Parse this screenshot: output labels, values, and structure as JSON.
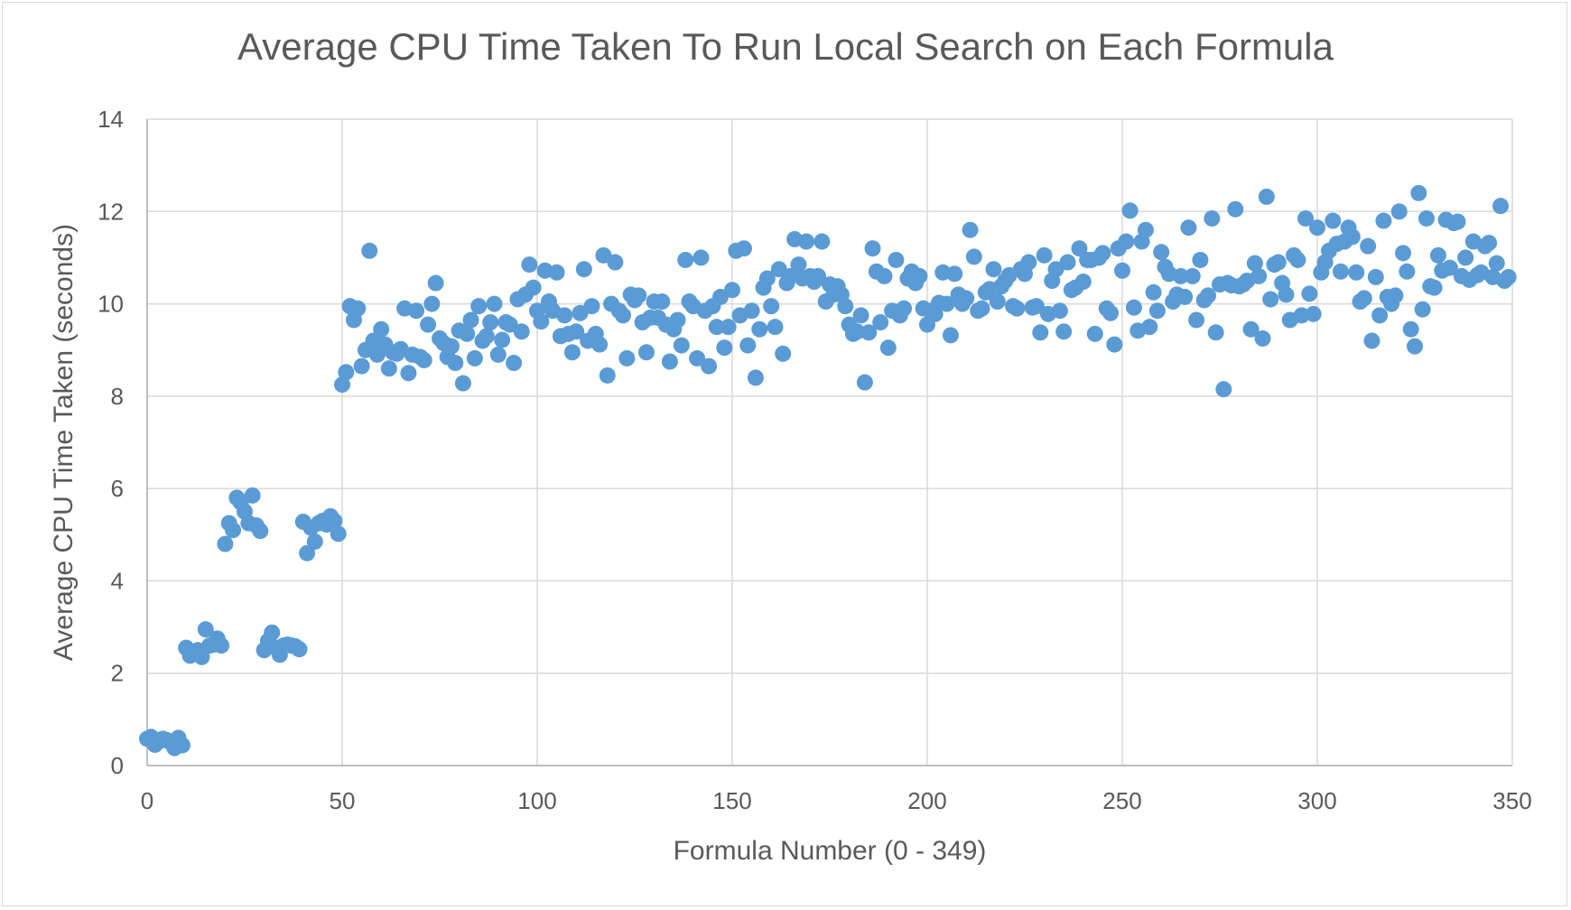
{
  "chart_data": {
    "type": "scatter",
    "title": "Average CPU Time Taken To Run Local Search on Each Formula",
    "xlabel": "Formula Number (0 - 349)",
    "ylabel": "Average CPU Time Taken (seconds)",
    "xlim": [
      0,
      350
    ],
    "ylim": [
      0,
      14
    ],
    "xticks": [
      0,
      50,
      100,
      150,
      200,
      250,
      300,
      350
    ],
    "yticks": [
      0,
      2,
      4,
      6,
      8,
      10,
      12,
      14
    ],
    "grid": true,
    "legend": "none",
    "marker_color": "#5b9bd5",
    "points": [
      [
        0,
        0.58
      ],
      [
        1,
        0.62
      ],
      [
        2,
        0.45
      ],
      [
        3,
        0.52
      ],
      [
        4,
        0.58
      ],
      [
        5,
        0.55
      ],
      [
        6,
        0.5
      ],
      [
        7,
        0.38
      ],
      [
        8,
        0.6
      ],
      [
        9,
        0.44
      ],
      [
        10,
        2.55
      ],
      [
        11,
        2.38
      ],
      [
        12,
        2.45
      ],
      [
        13,
        2.5
      ],
      [
        14,
        2.35
      ],
      [
        15,
        2.95
      ],
      [
        16,
        2.6
      ],
      [
        17,
        2.62
      ],
      [
        18,
        2.75
      ],
      [
        19,
        2.6
      ],
      [
        20,
        4.8
      ],
      [
        21,
        5.25
      ],
      [
        22,
        5.1
      ],
      [
        23,
        5.8
      ],
      [
        24,
        5.7
      ],
      [
        25,
        5.5
      ],
      [
        26,
        5.25
      ],
      [
        27,
        5.85
      ],
      [
        28,
        5.2
      ],
      [
        29,
        5.08
      ],
      [
        30,
        2.5
      ],
      [
        31,
        2.7
      ],
      [
        32,
        2.88
      ],
      [
        33,
        2.55
      ],
      [
        34,
        2.4
      ],
      [
        35,
        2.6
      ],
      [
        36,
        2.62
      ],
      [
        37,
        2.6
      ],
      [
        38,
        2.58
      ],
      [
        39,
        2.52
      ],
      [
        40,
        5.28
      ],
      [
        41,
        4.6
      ],
      [
        42,
        5.15
      ],
      [
        43,
        4.85
      ],
      [
        44,
        5.25
      ],
      [
        45,
        5.3
      ],
      [
        46,
        5.22
      ],
      [
        47,
        5.4
      ],
      [
        48,
        5.3
      ],
      [
        49,
        5.02
      ],
      [
        50,
        8.25
      ],
      [
        51,
        8.52
      ],
      [
        52,
        9.95
      ],
      [
        53,
        9.65
      ],
      [
        54,
        9.9
      ],
      [
        55,
        8.65
      ],
      [
        56,
        9.0
      ],
      [
        57,
        11.15
      ],
      [
        58,
        9.2
      ],
      [
        59,
        8.9
      ],
      [
        60,
        9.45
      ],
      [
        61,
        9.12
      ],
      [
        62,
        8.6
      ],
      [
        63,
        8.95
      ],
      [
        64,
        8.92
      ],
      [
        65,
        9.02
      ],
      [
        66,
        9.9
      ],
      [
        67,
        8.5
      ],
      [
        68,
        8.9
      ],
      [
        69,
        9.85
      ],
      [
        70,
        8.85
      ],
      [
        71,
        8.78
      ],
      [
        72,
        9.55
      ],
      [
        73,
        10.0
      ],
      [
        74,
        10.45
      ],
      [
        75,
        9.25
      ],
      [
        76,
        9.15
      ],
      [
        77,
        8.85
      ],
      [
        78,
        9.08
      ],
      [
        79,
        8.72
      ],
      [
        80,
        9.42
      ],
      [
        81,
        8.28
      ],
      [
        82,
        9.35
      ],
      [
        83,
        9.65
      ],
      [
        84,
        8.82
      ],
      [
        85,
        9.95
      ],
      [
        86,
        9.2
      ],
      [
        87,
        9.3
      ],
      [
        88,
        9.6
      ],
      [
        89,
        10.0
      ],
      [
        90,
        8.9
      ],
      [
        91,
        9.22
      ],
      [
        92,
        9.6
      ],
      [
        93,
        9.55
      ],
      [
        94,
        8.72
      ],
      [
        95,
        10.1
      ],
      [
        96,
        9.4
      ],
      [
        97,
        10.2
      ],
      [
        98,
        10.85
      ],
      [
        99,
        10.35
      ],
      [
        100,
        9.85
      ],
      [
        101,
        9.62
      ],
      [
        102,
        10.72
      ],
      [
        103,
        10.05
      ],
      [
        104,
        9.85
      ],
      [
        105,
        10.68
      ],
      [
        106,
        9.3
      ],
      [
        107,
        9.75
      ],
      [
        108,
        9.35
      ],
      [
        109,
        8.95
      ],
      [
        110,
        9.4
      ],
      [
        111,
        9.8
      ],
      [
        112,
        10.75
      ],
      [
        113,
        9.2
      ],
      [
        114,
        9.95
      ],
      [
        115,
        9.35
      ],
      [
        116,
        9.12
      ],
      [
        117,
        11.05
      ],
      [
        118,
        8.45
      ],
      [
        119,
        10.0
      ],
      [
        120,
        10.9
      ],
      [
        121,
        9.85
      ],
      [
        122,
        9.75
      ],
      [
        123,
        8.82
      ],
      [
        124,
        10.2
      ],
      [
        125,
        10.08
      ],
      [
        126,
        10.18
      ],
      [
        127,
        9.6
      ],
      [
        128,
        8.95
      ],
      [
        129,
        9.7
      ],
      [
        130,
        10.05
      ],
      [
        131,
        9.7
      ],
      [
        132,
        10.05
      ],
      [
        133,
        9.55
      ],
      [
        134,
        8.75
      ],
      [
        135,
        9.45
      ],
      [
        136,
        9.65
      ],
      [
        137,
        9.1
      ],
      [
        138,
        10.95
      ],
      [
        139,
        10.05
      ],
      [
        140,
        9.95
      ],
      [
        141,
        8.82
      ],
      [
        142,
        11.0
      ],
      [
        143,
        9.85
      ],
      [
        144,
        8.65
      ],
      [
        145,
        9.95
      ],
      [
        146,
        9.5
      ],
      [
        147,
        10.15
      ],
      [
        148,
        9.05
      ],
      [
        149,
        9.5
      ],
      [
        150,
        10.3
      ],
      [
        151,
        11.15
      ],
      [
        152,
        9.75
      ],
      [
        153,
        11.2
      ],
      [
        154,
        9.1
      ],
      [
        155,
        9.85
      ],
      [
        156,
        8.4
      ],
      [
        157,
        9.45
      ],
      [
        158,
        10.35
      ],
      [
        159,
        10.55
      ],
      [
        160,
        9.95
      ],
      [
        161,
        9.5
      ],
      [
        162,
        10.75
      ],
      [
        163,
        8.92
      ],
      [
        164,
        10.45
      ],
      [
        165,
        10.6
      ],
      [
        166,
        11.4
      ],
      [
        167,
        10.85
      ],
      [
        168,
        10.55
      ],
      [
        169,
        11.35
      ],
      [
        170,
        10.6
      ],
      [
        171,
        10.48
      ],
      [
        172,
        10.6
      ],
      [
        173,
        11.35
      ],
      [
        174,
        10.05
      ],
      [
        175,
        10.42
      ],
      [
        176,
        10.2
      ],
      [
        177,
        10.38
      ],
      [
        178,
        10.2
      ],
      [
        179,
        9.95
      ],
      [
        180,
        9.55
      ],
      [
        181,
        9.35
      ],
      [
        182,
        9.4
      ],
      [
        183,
        9.75
      ],
      [
        184,
        8.3
      ],
      [
        185,
        9.38
      ],
      [
        186,
        11.2
      ],
      [
        187,
        10.7
      ],
      [
        188,
        9.6
      ],
      [
        189,
        10.6
      ],
      [
        190,
        9.05
      ],
      [
        191,
        9.85
      ],
      [
        192,
        10.95
      ],
      [
        193,
        9.75
      ],
      [
        194,
        9.9
      ],
      [
        195,
        10.55
      ],
      [
        196,
        10.7
      ],
      [
        197,
        10.45
      ],
      [
        198,
        10.6
      ],
      [
        199,
        9.9
      ],
      [
        200,
        9.55
      ],
      [
        201,
        9.85
      ],
      [
        202,
        9.78
      ],
      [
        203,
        10.02
      ],
      [
        204,
        10.68
      ],
      [
        205,
        10.0
      ],
      [
        206,
        9.32
      ],
      [
        207,
        10.65
      ],
      [
        208,
        10.2
      ],
      [
        209,
        10.0
      ],
      [
        210,
        10.12
      ],
      [
        211,
        11.6
      ],
      [
        212,
        11.02
      ],
      [
        213,
        9.85
      ],
      [
        214,
        9.9
      ],
      [
        215,
        10.25
      ],
      [
        216,
        10.32
      ],
      [
        217,
        10.75
      ],
      [
        218,
        10.05
      ],
      [
        219,
        10.38
      ],
      [
        220,
        10.5
      ],
      [
        221,
        10.62
      ],
      [
        222,
        9.95
      ],
      [
        223,
        9.9
      ],
      [
        224,
        10.75
      ],
      [
        225,
        10.65
      ],
      [
        226,
        10.9
      ],
      [
        227,
        9.92
      ],
      [
        228,
        9.95
      ],
      [
        229,
        9.38
      ],
      [
        230,
        11.05
      ],
      [
        231,
        9.78
      ],
      [
        232,
        10.5
      ],
      [
        233,
        10.75
      ],
      [
        234,
        9.85
      ],
      [
        235,
        9.4
      ],
      [
        236,
        10.9
      ],
      [
        237,
        10.3
      ],
      [
        238,
        10.35
      ],
      [
        239,
        11.2
      ],
      [
        240,
        10.48
      ],
      [
        241,
        10.95
      ],
      [
        242,
        10.95
      ],
      [
        243,
        9.35
      ],
      [
        244,
        11.0
      ],
      [
        245,
        11.1
      ],
      [
        246,
        9.9
      ],
      [
        247,
        9.8
      ],
      [
        248,
        9.12
      ],
      [
        249,
        11.2
      ],
      [
        250,
        10.72
      ],
      [
        251,
        11.35
      ],
      [
        252,
        12.02
      ],
      [
        253,
        9.92
      ],
      [
        254,
        9.42
      ],
      [
        255,
        11.35
      ],
      [
        256,
        11.6
      ],
      [
        257,
        9.5
      ],
      [
        258,
        10.25
      ],
      [
        259,
        9.85
      ],
      [
        260,
        11.12
      ],
      [
        261,
        10.8
      ],
      [
        262,
        10.65
      ],
      [
        263,
        10.05
      ],
      [
        264,
        10.2
      ],
      [
        265,
        10.6
      ],
      [
        266,
        10.15
      ],
      [
        267,
        11.65
      ],
      [
        268,
        10.6
      ],
      [
        269,
        9.65
      ],
      [
        270,
        10.95
      ],
      [
        271,
        10.08
      ],
      [
        272,
        10.18
      ],
      [
        273,
        11.85
      ],
      [
        274,
        9.38
      ],
      [
        275,
        10.42
      ],
      [
        276,
        8.15
      ],
      [
        277,
        10.45
      ],
      [
        278,
        10.4
      ],
      [
        279,
        12.05
      ],
      [
        280,
        10.38
      ],
      [
        281,
        10.42
      ],
      [
        282,
        10.5
      ],
      [
        283,
        9.45
      ],
      [
        284,
        10.88
      ],
      [
        285,
        10.6
      ],
      [
        286,
        9.25
      ],
      [
        287,
        12.32
      ],
      [
        288,
        10.1
      ],
      [
        289,
        10.85
      ],
      [
        290,
        10.9
      ],
      [
        291,
        10.45
      ],
      [
        292,
        10.2
      ],
      [
        293,
        9.65
      ],
      [
        294,
        11.05
      ],
      [
        295,
        10.95
      ],
      [
        296,
        9.75
      ],
      [
        297,
        11.85
      ],
      [
        298,
        10.22
      ],
      [
        299,
        9.78
      ],
      [
        300,
        11.65
      ],
      [
        301,
        10.68
      ],
      [
        302,
        10.9
      ],
      [
        303,
        11.15
      ],
      [
        304,
        11.8
      ],
      [
        305,
        11.3
      ],
      [
        306,
        10.7
      ],
      [
        307,
        11.35
      ],
      [
        308,
        11.65
      ],
      [
        309,
        11.45
      ],
      [
        310,
        10.68
      ],
      [
        311,
        10.05
      ],
      [
        312,
        10.12
      ],
      [
        313,
        11.25
      ],
      [
        314,
        9.2
      ],
      [
        315,
        10.58
      ],
      [
        316,
        9.75
      ],
      [
        317,
        11.8
      ],
      [
        318,
        10.15
      ],
      [
        319,
        10.0
      ],
      [
        320,
        10.18
      ],
      [
        321,
        12.0
      ],
      [
        322,
        11.1
      ],
      [
        323,
        10.7
      ],
      [
        324,
        9.45
      ],
      [
        325,
        9.08
      ],
      [
        326,
        12.4
      ],
      [
        327,
        9.88
      ],
      [
        328,
        11.85
      ],
      [
        329,
        10.38
      ],
      [
        330,
        10.35
      ],
      [
        331,
        11.05
      ],
      [
        332,
        10.72
      ],
      [
        333,
        11.82
      ],
      [
        334,
        10.78
      ],
      [
        335,
        11.75
      ],
      [
        336,
        11.78
      ],
      [
        337,
        10.6
      ],
      [
        338,
        11.0
      ],
      [
        339,
        10.52
      ],
      [
        340,
        11.35
      ],
      [
        341,
        10.62
      ],
      [
        342,
        10.68
      ],
      [
        343,
        11.25
      ],
      [
        344,
        11.32
      ],
      [
        345,
        10.58
      ],
      [
        346,
        10.88
      ],
      [
        347,
        12.12
      ],
      [
        348,
        10.5
      ],
      [
        349,
        10.58
      ]
    ]
  }
}
